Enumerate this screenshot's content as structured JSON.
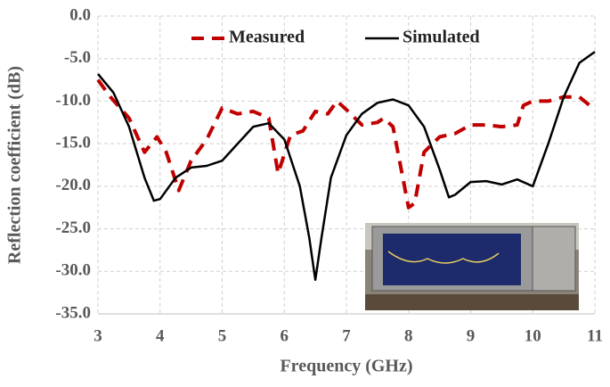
{
  "chart_data": {
    "type": "line",
    "x_label": "Frequency (GHz)",
    "y_label": "Reflection coefficient (dB)",
    "xlim": [
      3,
      11
    ],
    "xticks": [
      3,
      4,
      5,
      6,
      7,
      8,
      9,
      10,
      11
    ],
    "ylim": [
      -35,
      0
    ],
    "yticks": [
      {
        "value": 0,
        "label": "0.0"
      },
      {
        "value": -5,
        "label": "-5.0"
      },
      {
        "value": -10,
        "label": "-10.0"
      },
      {
        "value": -15,
        "label": "-15.0"
      },
      {
        "value": -20,
        "label": "-20.0"
      },
      {
        "value": -25,
        "label": "-25.0"
      },
      {
        "value": -30,
        "label": "-30.0"
      },
      {
        "value": -35,
        "label": "-35.0"
      }
    ],
    "grid": true,
    "series": [
      {
        "name": "Measured",
        "color": "#c00000",
        "dash": true,
        "x": [
          3.0,
          3.2,
          3.5,
          3.75,
          3.95,
          4.1,
          4.3,
          4.5,
          4.75,
          5.0,
          5.25,
          5.5,
          5.75,
          5.9,
          6.1,
          6.3,
          6.5,
          6.7,
          6.85,
          7.0,
          7.25,
          7.5,
          7.6,
          7.75,
          8.0,
          8.1,
          8.25,
          8.5,
          8.75,
          9.0,
          9.25,
          9.5,
          9.75,
          9.85,
          10.0,
          10.25,
          10.5,
          10.75,
          11.0
        ],
        "values": [
          -7.5,
          -9.5,
          -12,
          -16,
          -14.2,
          -16,
          -20.5,
          -17,
          -14.5,
          -10.8,
          -11.5,
          -11.2,
          -12,
          -18.5,
          -14,
          -13.5,
          -11.2,
          -11.5,
          -10,
          -11,
          -12.8,
          -12.5,
          -12,
          -13,
          -22.5,
          -22,
          -16,
          -14.2,
          -13.8,
          -12.8,
          -12.8,
          -13,
          -12.8,
          -10.5,
          -10,
          -10,
          -9.5,
          -9.5,
          -11
        ]
      },
      {
        "name": "Simulated",
        "color": "#000000",
        "dash": false,
        "x": [
          3.0,
          3.25,
          3.5,
          3.75,
          3.9,
          4.0,
          4.25,
          4.5,
          4.75,
          5.0,
          5.25,
          5.5,
          5.75,
          6.0,
          6.25,
          6.4,
          6.5,
          6.6,
          6.75,
          7.0,
          7.25,
          7.5,
          7.75,
          8.0,
          8.25,
          8.5,
          8.65,
          8.75,
          9.0,
          9.25,
          9.5,
          9.75,
          10.0,
          10.25,
          10.5,
          10.75,
          11.0
        ],
        "values": [
          -6.8,
          -9,
          -13,
          -19,
          -21.7,
          -21.5,
          -19,
          -17.8,
          -17.6,
          -17,
          -15,
          -13,
          -12.6,
          -14.5,
          -20,
          -26,
          -31,
          -26,
          -19,
          -14,
          -11.5,
          -10.2,
          -9.8,
          -10.5,
          -13,
          -18,
          -21.3,
          -21,
          -19.5,
          -19.4,
          -19.8,
          -19.2,
          -20,
          -15,
          -9.5,
          -5.5,
          -4.2
        ]
      }
    ]
  }
}
